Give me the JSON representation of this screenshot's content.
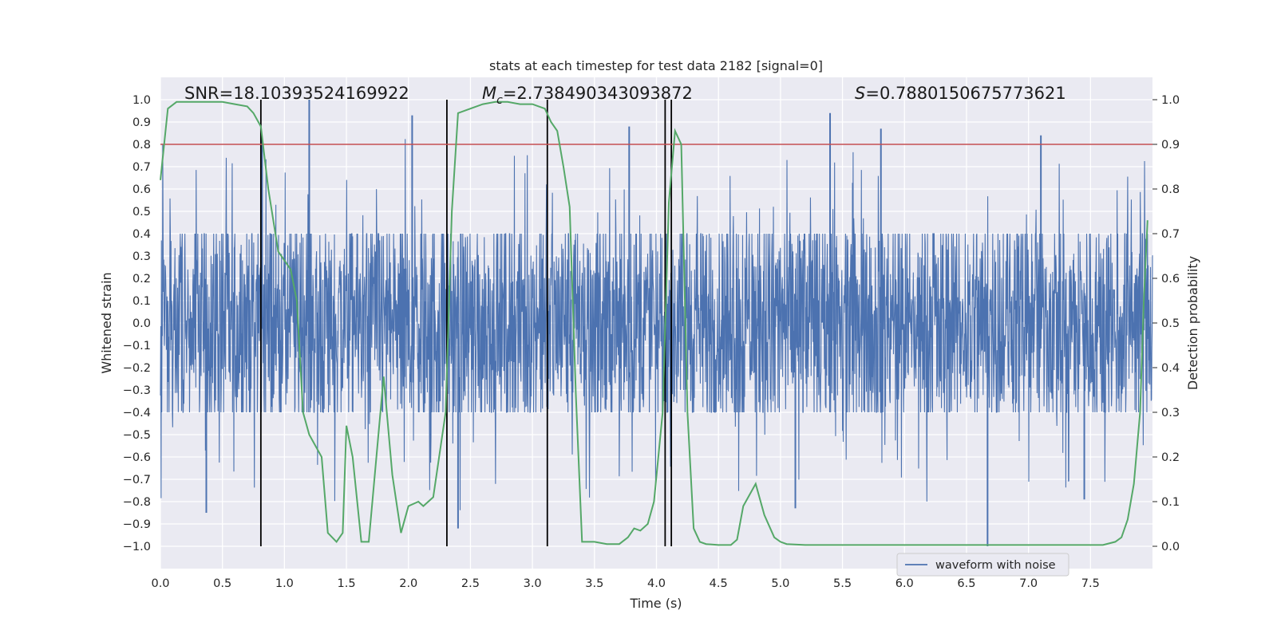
{
  "chart_data": {
    "type": "line",
    "title": "stats at each timestep for test data 2182 [signal=0]",
    "xlabel": "Time (s)",
    "ylabel": "Whitened strain",
    "y2label": "Detection probability",
    "xlim": [
      0.0,
      8.0
    ],
    "ylim": [
      -1.1,
      1.1
    ],
    "y2lim": [
      -0.05,
      1.05
    ],
    "xticks": [
      "0.0",
      "0.5",
      "1.0",
      "1.5",
      "2.0",
      "2.5",
      "3.0",
      "3.5",
      "4.0",
      "4.5",
      "5.0",
      "5.5",
      "6.0",
      "6.5",
      "7.0",
      "7.5"
    ],
    "xtick_values": [
      0.0,
      0.5,
      1.0,
      1.5,
      2.0,
      2.5,
      3.0,
      3.5,
      4.0,
      4.5,
      5.0,
      5.5,
      6.0,
      6.5,
      7.0,
      7.5
    ],
    "yticks": [
      "1.0",
      "0.9",
      "0.8",
      "0.7",
      "0.6",
      "0.5",
      "0.4",
      "0.3",
      "0.2",
      "0.1",
      "0.0",
      "−0.1",
      "−0.2",
      "−0.3",
      "−0.4",
      "−0.5",
      "−0.6",
      "−0.7",
      "−0.8",
      "−0.9",
      "−1.0"
    ],
    "ytick_values": [
      1.0,
      0.9,
      0.8,
      0.7,
      0.6,
      0.5,
      0.4,
      0.3,
      0.2,
      0.1,
      0.0,
      -0.1,
      -0.2,
      -0.3,
      -0.4,
      -0.5,
      -0.6,
      -0.7,
      -0.8,
      -0.9,
      -1.0
    ],
    "y2ticks": [
      "1.0",
      "0.9",
      "0.8",
      "0.7",
      "0.6",
      "0.5",
      "0.4",
      "0.3",
      "0.2",
      "0.1",
      "0.0"
    ],
    "y2tick_values": [
      1.0,
      0.9,
      0.8,
      0.7,
      0.6,
      0.5,
      0.4,
      0.3,
      0.2,
      0.1,
      0.0
    ],
    "grid": true,
    "legend_position": "bottom-right",
    "annotations": {
      "snr": "SNR=18.10393524169922",
      "mc_symbol": "M",
      "mc_sub": "c",
      "mc_value": "=2.738490343093872",
      "s_symbol": "S",
      "s_value": "=0.7880150675773621"
    },
    "threshold": {
      "value": 0.9,
      "axis": "right",
      "color": "#c44e52"
    },
    "vertical_markers": [
      0.81,
      2.31,
      3.12,
      4.07,
      4.12
    ],
    "vertical_marker_range": [
      -1.0,
      1.0
    ],
    "series": [
      {
        "name": "waveform with noise",
        "axis": "left",
        "color": "#4c72b0",
        "kind": "noise",
        "time_range": [
          0.0,
          8.0
        ],
        "base_amplitude": 0.4,
        "max_abs": 1.0,
        "peaks": [
          {
            "t": 0.82,
            "v": 0.83
          },
          {
            "t": 1.2,
            "v": 1.0
          },
          {
            "t": 2.03,
            "v": 0.93
          },
          {
            "t": 3.78,
            "v": 0.88
          },
          {
            "t": 5.4,
            "v": 0.94
          },
          {
            "t": 5.81,
            "v": 0.87
          },
          {
            "t": 7.1,
            "v": 0.84
          },
          {
            "t": 0.37,
            "v": -0.85
          },
          {
            "t": 2.4,
            "v": -0.92
          },
          {
            "t": 5.12,
            "v": -0.83
          },
          {
            "t": 6.67,
            "v": -1.0
          },
          {
            "t": 7.45,
            "v": -0.79
          }
        ]
      },
      {
        "name": "Detection probability",
        "axis": "right",
        "color": "#55a868",
        "x": [
          0.0,
          0.06,
          0.13,
          0.2,
          0.3,
          0.4,
          0.5,
          0.6,
          0.7,
          0.75,
          0.81,
          0.87,
          0.95,
          1.0,
          1.05,
          1.1,
          1.15,
          1.2,
          1.3,
          1.35,
          1.42,
          1.47,
          1.5,
          1.55,
          1.62,
          1.68,
          1.8,
          1.87,
          1.94,
          2.0,
          2.08,
          2.12,
          2.2,
          2.3,
          2.35,
          2.4,
          2.5,
          2.6,
          2.7,
          2.8,
          2.9,
          3.0,
          3.05,
          3.1,
          3.15,
          3.2,
          3.25,
          3.3,
          3.35,
          3.4,
          3.5,
          3.6,
          3.7,
          3.77,
          3.82,
          3.87,
          3.93,
          3.98,
          4.05,
          4.1,
          4.15,
          4.2,
          4.25,
          4.3,
          4.35,
          4.4,
          4.5,
          4.6,
          4.65,
          4.7,
          4.8,
          4.87,
          4.95,
          5.0,
          5.05,
          5.2,
          5.5,
          5.8,
          6.2,
          6.6,
          7.0,
          7.05,
          7.15,
          7.3,
          7.5,
          7.6,
          7.7,
          7.75,
          7.8,
          7.85,
          7.9,
          7.93,
          7.96
        ],
        "values": [
          0.82,
          0.98,
          0.995,
          0.995,
          0.995,
          0.995,
          0.995,
          0.99,
          0.985,
          0.97,
          0.94,
          0.8,
          0.66,
          0.64,
          0.62,
          0.55,
          0.3,
          0.25,
          0.2,
          0.03,
          0.01,
          0.03,
          0.27,
          0.2,
          0.01,
          0.01,
          0.38,
          0.16,
          0.03,
          0.09,
          0.1,
          0.09,
          0.11,
          0.3,
          0.75,
          0.97,
          0.98,
          0.99,
          0.995,
          0.995,
          0.99,
          0.99,
          0.985,
          0.98,
          0.95,
          0.93,
          0.85,
          0.76,
          0.34,
          0.01,
          0.01,
          0.005,
          0.005,
          0.02,
          0.04,
          0.035,
          0.05,
          0.1,
          0.3,
          0.77,
          0.93,
          0.9,
          0.3,
          0.04,
          0.01,
          0.005,
          0.003,
          0.003,
          0.015,
          0.09,
          0.14,
          0.07,
          0.02,
          0.01,
          0.005,
          0.003,
          0.003,
          0.003,
          0.003,
          0.003,
          0.003,
          0.003,
          0.003,
          0.003,
          0.003,
          0.003,
          0.01,
          0.02,
          0.06,
          0.14,
          0.3,
          0.55,
          0.73
        ]
      }
    ]
  }
}
